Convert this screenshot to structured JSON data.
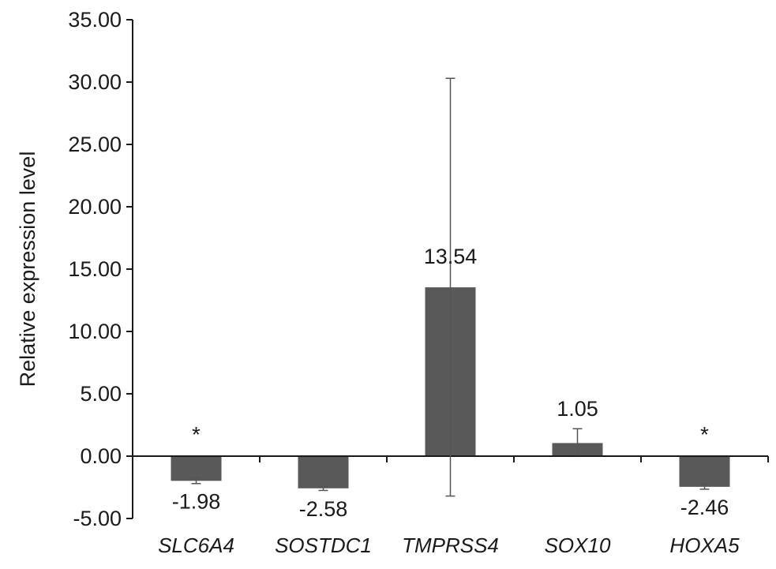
{
  "chart_data": {
    "type": "bar",
    "title": "",
    "xlabel": "",
    "ylabel": "Relative expression level",
    "ylim": [
      -5,
      35
    ],
    "yticks": [
      35,
      30,
      25,
      20,
      15,
      10,
      5,
      0,
      -5
    ],
    "ytick_labels": [
      "35.00",
      "30.00",
      "25.00",
      "20.00",
      "15.00",
      "10.00",
      "5.00",
      "0.00",
      "-5.00"
    ],
    "categories": [
      "SLC6A4",
      "SOSTDC1",
      "TMPRSS4",
      "SOX10",
      "HOXA5"
    ],
    "values": [
      -1.98,
      -2.58,
      13.54,
      1.05,
      -2.46
    ],
    "value_labels": [
      "-1.98",
      "-2.58",
      "13.54",
      "1.05",
      "-2.46"
    ],
    "error_low": [
      -2.2,
      -2.75,
      -3.2,
      0.1,
      -2.65
    ],
    "error_high": [
      -1.75,
      -2.45,
      30.3,
      2.2,
      -2.25
    ],
    "significance": [
      "*",
      "",
      "",
      "",
      "*"
    ],
    "grid": false,
    "legend": "none",
    "colors": {
      "bar": "#595959",
      "axis": "#1a1a1a",
      "error": "#555555"
    }
  }
}
